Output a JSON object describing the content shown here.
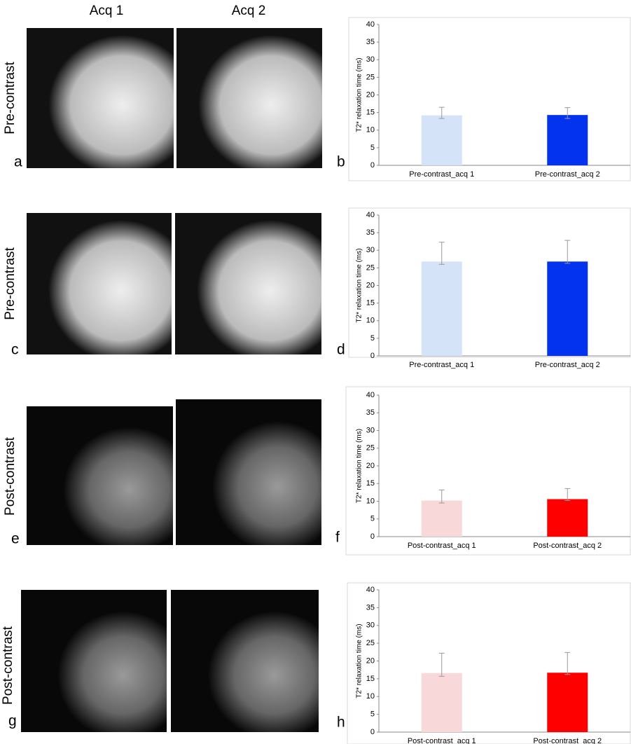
{
  "figure": {
    "column_labels": [
      "Acq 1",
      "Acq 2"
    ],
    "row_labels": [
      "Pre-contrast",
      "Pre-contrast",
      "Post-contrast",
      "Post-contrast"
    ],
    "panel_letters": [
      "a",
      "b",
      "c",
      "d",
      "e",
      "f",
      "g",
      "h"
    ]
  },
  "chart_data": [
    {
      "type": "bar",
      "ylabel": "T2* relaxation time (ms)",
      "categories": [
        "Pre-contrast_acq 1",
        "Pre-contrast_acq 2"
      ],
      "values": [
        14.2,
        14.3
      ],
      "err_plus": [
        2.3,
        2.1
      ],
      "err_minus": [
        0.9,
        1.0
      ],
      "colors": [
        "#d5e3f8",
        "#0433f0"
      ],
      "ylim": [
        0,
        40
      ],
      "yticks": [
        0,
        5,
        10,
        15,
        20,
        25,
        30,
        35,
        40
      ]
    },
    {
      "type": "bar",
      "ylabel": "T2* relaxation time (ms)",
      "categories": [
        "Pre-contrast_acq 1",
        "Pre-contrast_acq 2"
      ],
      "values": [
        26.8,
        26.8
      ],
      "err_plus": [
        5.5,
        6.0
      ],
      "err_minus": [
        0.8,
        0.5
      ],
      "colors": [
        "#d5e3f8",
        "#0433f0"
      ],
      "ylim": [
        0,
        40
      ],
      "yticks": [
        0,
        5,
        10,
        15,
        20,
        25,
        30,
        35,
        40
      ]
    },
    {
      "type": "bar",
      "ylabel": "T2* relaxation time (ms)",
      "categories": [
        "Post-contrast_acq 1",
        "Post-contrast_acq 2"
      ],
      "values": [
        10.2,
        10.6
      ],
      "err_plus": [
        3.0,
        3.0
      ],
      "err_minus": [
        0.7,
        0.4
      ],
      "colors": [
        "#f8d8d8",
        "#ff0000"
      ],
      "ylim": [
        0,
        40
      ],
      "yticks": [
        0,
        5,
        10,
        15,
        20,
        25,
        30,
        35,
        40
      ]
    },
    {
      "type": "bar",
      "ylabel": "T2* relaxation time (ms)",
      "categories": [
        "Post-contrast_acq 1",
        "Post-contrast_acq 2"
      ],
      "values": [
        16.6,
        16.7
      ],
      "err_plus": [
        5.6,
        5.7
      ],
      "err_minus": [
        0.9,
        0.5
      ],
      "colors": [
        "#f8d8d8",
        "#ff0000"
      ],
      "ylim": [
        0,
        40
      ],
      "yticks": [
        0,
        5,
        10,
        15,
        20,
        25,
        30,
        35,
        40
      ]
    }
  ]
}
